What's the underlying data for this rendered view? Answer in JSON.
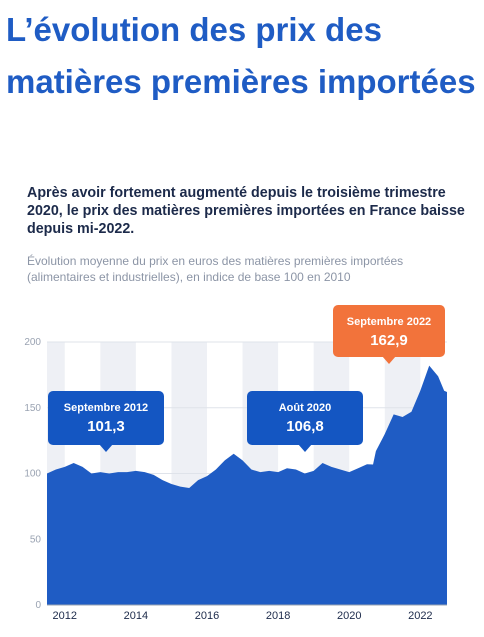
{
  "page": {
    "title": "L’évolution des prix des matières premières importées"
  },
  "card": {
    "headline": "Après avoir fortement augmenté depuis le troisième trimestre 2020, le prix des matières premières importées en France baisse depuis mi-2022.",
    "subtitle": "Évolution moyenne du prix en euros des matières premières importées (alimentaires et industrielles), en indice de base 100 en 2010"
  },
  "colors": {
    "area": "#1f5cc4",
    "band": "#eef0f5",
    "callout": "#1456c2",
    "callout_highlight": "#f2733b",
    "grid": "#dfe3ea"
  },
  "chart_data": {
    "type": "area",
    "ylim": [
      0,
      200
    ],
    "xlim": [
      2011.5,
      2022.75
    ],
    "y_ticks": [
      {
        "value": 0,
        "label": "0"
      },
      {
        "value": 50,
        "label": "50"
      },
      {
        "value": 100,
        "label": "100"
      },
      {
        "value": 150,
        "label": "150"
      },
      {
        "value": 200,
        "label": "200"
      }
    ],
    "x_ticks": [
      {
        "value": 2012,
        "label": "2012"
      },
      {
        "value": 2014,
        "label": "2014"
      },
      {
        "value": 2016,
        "label": "2016"
      },
      {
        "value": 2018,
        "label": "2018"
      },
      {
        "value": 2020,
        "label": "2020"
      },
      {
        "value": 2022,
        "label": "2022"
      }
    ],
    "bands": [
      [
        2011.5,
        2012
      ],
      [
        2013,
        2014
      ],
      [
        2015,
        2016
      ],
      [
        2017,
        2018
      ],
      [
        2019,
        2020
      ],
      [
        2021,
        2022
      ]
    ],
    "series": [
      {
        "x": [
          2011.5,
          2011.75,
          2012.0,
          2012.25,
          2012.5,
          2012.75,
          2013.0,
          2013.25,
          2013.5,
          2013.75,
          2014.0,
          2014.25,
          2014.5,
          2014.75,
          2015.0,
          2015.25,
          2015.5,
          2015.75,
          2016.0,
          2016.25,
          2016.5,
          2016.75,
          2017.0,
          2017.25,
          2017.5,
          2017.75,
          2018.0,
          2018.25,
          2018.5,
          2018.75,
          2019.0,
          2019.25,
          2019.5,
          2019.75,
          2020.0,
          2020.25,
          2020.5,
          2020.67,
          2020.75,
          2021.0,
          2021.25,
          2021.5,
          2021.75,
          2022.0,
          2022.25,
          2022.5,
          2022.67,
          2022.75
        ],
        "y": [
          100,
          103,
          105,
          108,
          105,
          100,
          101,
          100,
          101,
          101,
          102,
          101,
          99,
          95,
          92,
          90,
          89,
          95,
          98,
          103,
          110,
          115,
          110,
          103,
          101,
          102,
          101,
          104,
          103,
          100,
          102,
          108,
          105,
          103,
          101,
          104,
          107,
          106.8,
          117,
          130,
          145,
          143,
          147,
          163,
          182,
          174,
          162.9,
          162
        ]
      }
    ],
    "annotations": [
      {
        "title": "Septembre 2012",
        "value": "101,3",
        "x": 2012.67,
        "y": 101.3,
        "style": "blue"
      },
      {
        "title": "Août 2020",
        "value": "106,8",
        "x": 2020.58,
        "y": 106.8,
        "style": "blue"
      },
      {
        "title": "Septembre 2022",
        "value": "162,9",
        "x": 2022.67,
        "y": 162.9,
        "style": "orange"
      }
    ]
  }
}
